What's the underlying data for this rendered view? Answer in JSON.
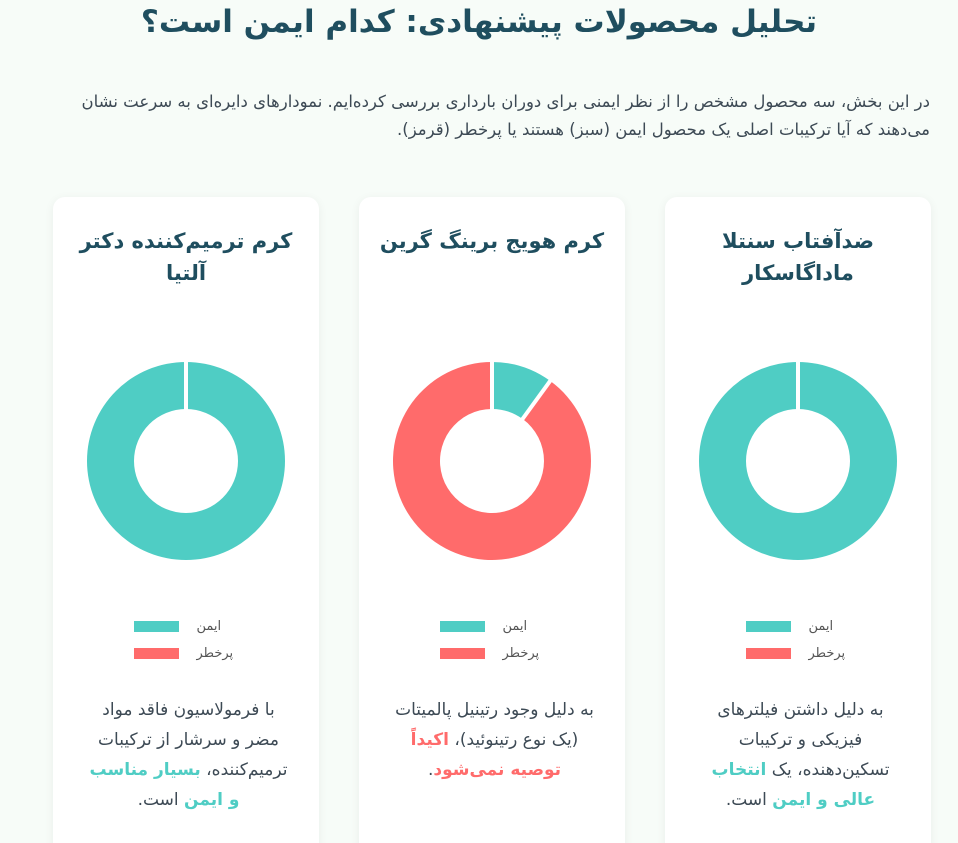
{
  "page": {
    "title": "تحلیل محصولات پیشنهادی: کدام ایمن است؟",
    "intro": "در این بخش، سه محصول مشخص را از نظر ایمنی برای دوران بارداری بررسی کرده‌ایم. نمودارهای دایره‌ای به سرعت نشان می‌دهند که آیا ترکیبات اصلی یک محصول ایمن (سبز) هستند یا پرخطر (قرمز)."
  },
  "colors": {
    "safe": "#4fcdc4",
    "risk": "#ff6b6b",
    "heading": "#1f4e5f"
  },
  "legend": {
    "safe_label": "ایمن",
    "risk_label": "پرخطر"
  },
  "products": [
    {
      "title": "ضدآفتاب سنتلا ماداگاسکار",
      "desc_before": "به دلیل داشتن فیلترهای فیزیکی و ترکیبات تسکین‌دهنده، یک ",
      "desc_highlight": "انتخاب عالی و ایمن",
      "desc_after": " است."
    },
    {
      "title": "کرم هویج برینگ گرین",
      "desc_before": "به دلیل وجود رتینیل پالمیتات (یک نوع رتینوئید)، ",
      "desc_highlight": "اکیداً توصیه نمی‌شود",
      "desc_after": "."
    },
    {
      "title": "کرم ترمیم‌کننده دکتر آلتیا",
      "desc_before": "با فرمولاسیون فاقد مواد مضر و سرشار از ترکیبات ترمیم‌کننده، ",
      "desc_highlight": "بسیار مناسب و ایمن",
      "desc_after": " است."
    }
  ],
  "chart_data": [
    {
      "type": "pie",
      "labels": [
        "ایمن",
        "پرخطر"
      ],
      "values": [
        100,
        0
      ]
    },
    {
      "type": "pie",
      "labels": [
        "ایمن",
        "پرخطر"
      ],
      "values": [
        10,
        90
      ]
    },
    {
      "type": "pie",
      "labels": [
        "ایمن",
        "پرخطر"
      ],
      "values": [
        100,
        0
      ]
    }
  ]
}
